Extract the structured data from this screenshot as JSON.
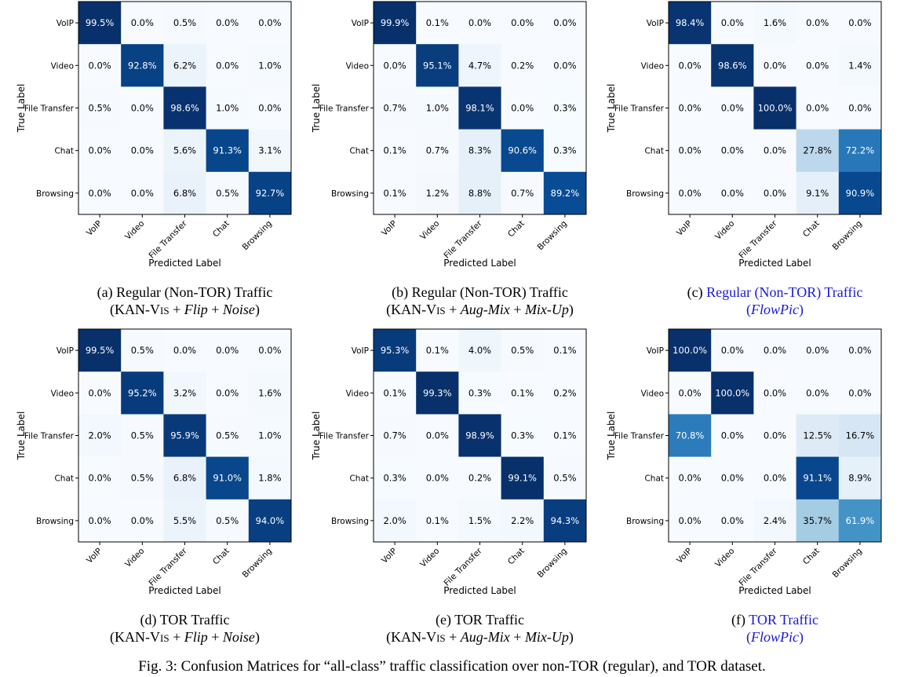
{
  "figure_caption": "Fig. 3: Confusion Matrices for “all-class” traffic classification over non-TOR (regular), and TOR dataset.",
  "colormap": "Blues",
  "colors": {
    "cell_min": "#f7fbff",
    "cell_max": "#08306b",
    "caption_link": "#1a1ad6",
    "text_light": "#ffffff",
    "text_dark": "#000000"
  },
  "chart_data": [
    {
      "type": "heatmap",
      "panel_label": "(a)",
      "caption_line1": "Regular (Non-TOR) Traffic",
      "caption_line2": {
        "method": "KAN-Vis",
        "augmentations": "Flip + Noise"
      },
      "caption_color": "black",
      "xlabel": "Predicted Label",
      "ylabel": "True Label",
      "x_categories": [
        "VoIP",
        "Video",
        "File Transfer",
        "Chat",
        "Browsing"
      ],
      "y_categories": [
        "VoIP",
        "Video",
        "File Transfer",
        "Chat",
        "Browsing"
      ],
      "unit": "%",
      "values": [
        [
          99.5,
          0.0,
          0.5,
          0.0,
          0.0
        ],
        [
          0.0,
          92.8,
          6.2,
          0.0,
          1.0
        ],
        [
          0.5,
          0.0,
          98.6,
          1.0,
          0.0
        ],
        [
          0.0,
          0.0,
          5.6,
          91.3,
          3.1
        ],
        [
          0.0,
          0.0,
          6.8,
          0.5,
          92.7
        ]
      ]
    },
    {
      "type": "heatmap",
      "panel_label": "(b)",
      "caption_line1": "Regular (Non-TOR) Traffic",
      "caption_line2": {
        "method": "KAN-Vis",
        "augmentations": "Aug-Mix + Mix-Up"
      },
      "caption_color": "black",
      "xlabel": "Predicted Label",
      "ylabel": "True Label",
      "x_categories": [
        "VoIP",
        "Video",
        "File Transfer",
        "Chat",
        "Browsing"
      ],
      "y_categories": [
        "VoIP",
        "Video",
        "File Transfer",
        "Chat",
        "Browsing"
      ],
      "unit": "%",
      "values": [
        [
          99.9,
          0.1,
          0.0,
          0.0,
          0.0
        ],
        [
          0.0,
          95.1,
          4.7,
          0.2,
          0.0
        ],
        [
          0.7,
          1.0,
          98.1,
          0.0,
          0.3
        ],
        [
          0.1,
          0.7,
          8.3,
          90.6,
          0.3
        ],
        [
          0.1,
          1.2,
          8.8,
          0.7,
          89.2
        ]
      ]
    },
    {
      "type": "heatmap",
      "panel_label": "(c)",
      "caption_line1": "Regular (Non-TOR) Traffic",
      "caption_line2": {
        "method": "FlowPic",
        "augmentations": ""
      },
      "caption_color": "blue",
      "xlabel": "Predicted Label",
      "ylabel": "True Label",
      "x_categories": [
        "VoIP",
        "Video",
        "File Transfer",
        "Chat",
        "Browsing"
      ],
      "y_categories": [
        "VoIP",
        "Video",
        "File Transfer",
        "Chat",
        "Browsing"
      ],
      "unit": "%",
      "values": [
        [
          98.4,
          0.0,
          1.6,
          0.0,
          0.0
        ],
        [
          0.0,
          98.6,
          0.0,
          0.0,
          1.4
        ],
        [
          0.0,
          0.0,
          100.0,
          0.0,
          0.0
        ],
        [
          0.0,
          0.0,
          0.0,
          27.8,
          72.2
        ],
        [
          0.0,
          0.0,
          0.0,
          9.1,
          90.9
        ]
      ]
    },
    {
      "type": "heatmap",
      "panel_label": "(d)",
      "caption_line1": "TOR Traffic",
      "caption_line2": {
        "method": "KAN-Vis",
        "augmentations": "Flip + Noise"
      },
      "caption_color": "black",
      "xlabel": "Predicted Label",
      "ylabel": "True Label",
      "x_categories": [
        "VoIP",
        "Video",
        "File Transfer",
        "Chat",
        "Browsing"
      ],
      "y_categories": [
        "VoIP",
        "Video",
        "File Transfer",
        "Chat",
        "Browsing"
      ],
      "unit": "%",
      "values": [
        [
          99.5,
          0.5,
          0.0,
          0.0,
          0.0
        ],
        [
          0.0,
          95.2,
          3.2,
          0.0,
          1.6
        ],
        [
          2.0,
          0.5,
          95.9,
          0.5,
          1.0
        ],
        [
          0.0,
          0.5,
          6.8,
          91.0,
          1.8
        ],
        [
          0.0,
          0.0,
          5.5,
          0.5,
          94.0
        ]
      ]
    },
    {
      "type": "heatmap",
      "panel_label": "(e)",
      "caption_line1": "TOR Traffic",
      "caption_line2": {
        "method": "KAN-Vis",
        "augmentations": "Aug-Mix + Mix-Up"
      },
      "caption_color": "black",
      "xlabel": "Predicted Label",
      "ylabel": "True Label",
      "x_categories": [
        "VoIP",
        "Video",
        "File Transfer",
        "Chat",
        "Browsing"
      ],
      "y_categories": [
        "VoIP",
        "Video",
        "File Transfer",
        "Chat",
        "Browsing"
      ],
      "unit": "%",
      "values": [
        [
          95.3,
          0.1,
          4.0,
          0.5,
          0.1
        ],
        [
          0.1,
          99.3,
          0.3,
          0.1,
          0.2
        ],
        [
          0.7,
          0.0,
          98.9,
          0.3,
          0.1
        ],
        [
          0.3,
          0.0,
          0.2,
          99.1,
          0.5
        ],
        [
          2.0,
          0.1,
          1.5,
          2.2,
          94.3
        ]
      ]
    },
    {
      "type": "heatmap",
      "panel_label": "(f)",
      "caption_line1": "TOR Traffic",
      "caption_line2": {
        "method": "FlowPic",
        "augmentations": ""
      },
      "caption_color": "blue",
      "xlabel": "Predicted Label",
      "ylabel": "True Label",
      "x_categories": [
        "VoIP",
        "Video",
        "File Transfer",
        "Chat",
        "Browsing"
      ],
      "y_categories": [
        "VoIP",
        "Video",
        "File Transfer",
        "Chat",
        "Browsing"
      ],
      "unit": "%",
      "values": [
        [
          100.0,
          0.0,
          0.0,
          0.0,
          0.0
        ],
        [
          0.0,
          100.0,
          0.0,
          0.0,
          0.0
        ],
        [
          70.8,
          0.0,
          0.0,
          12.5,
          16.7
        ],
        [
          0.0,
          0.0,
          0.0,
          91.1,
          8.9
        ],
        [
          0.0,
          0.0,
          2.4,
          35.7,
          61.9
        ]
      ]
    }
  ]
}
